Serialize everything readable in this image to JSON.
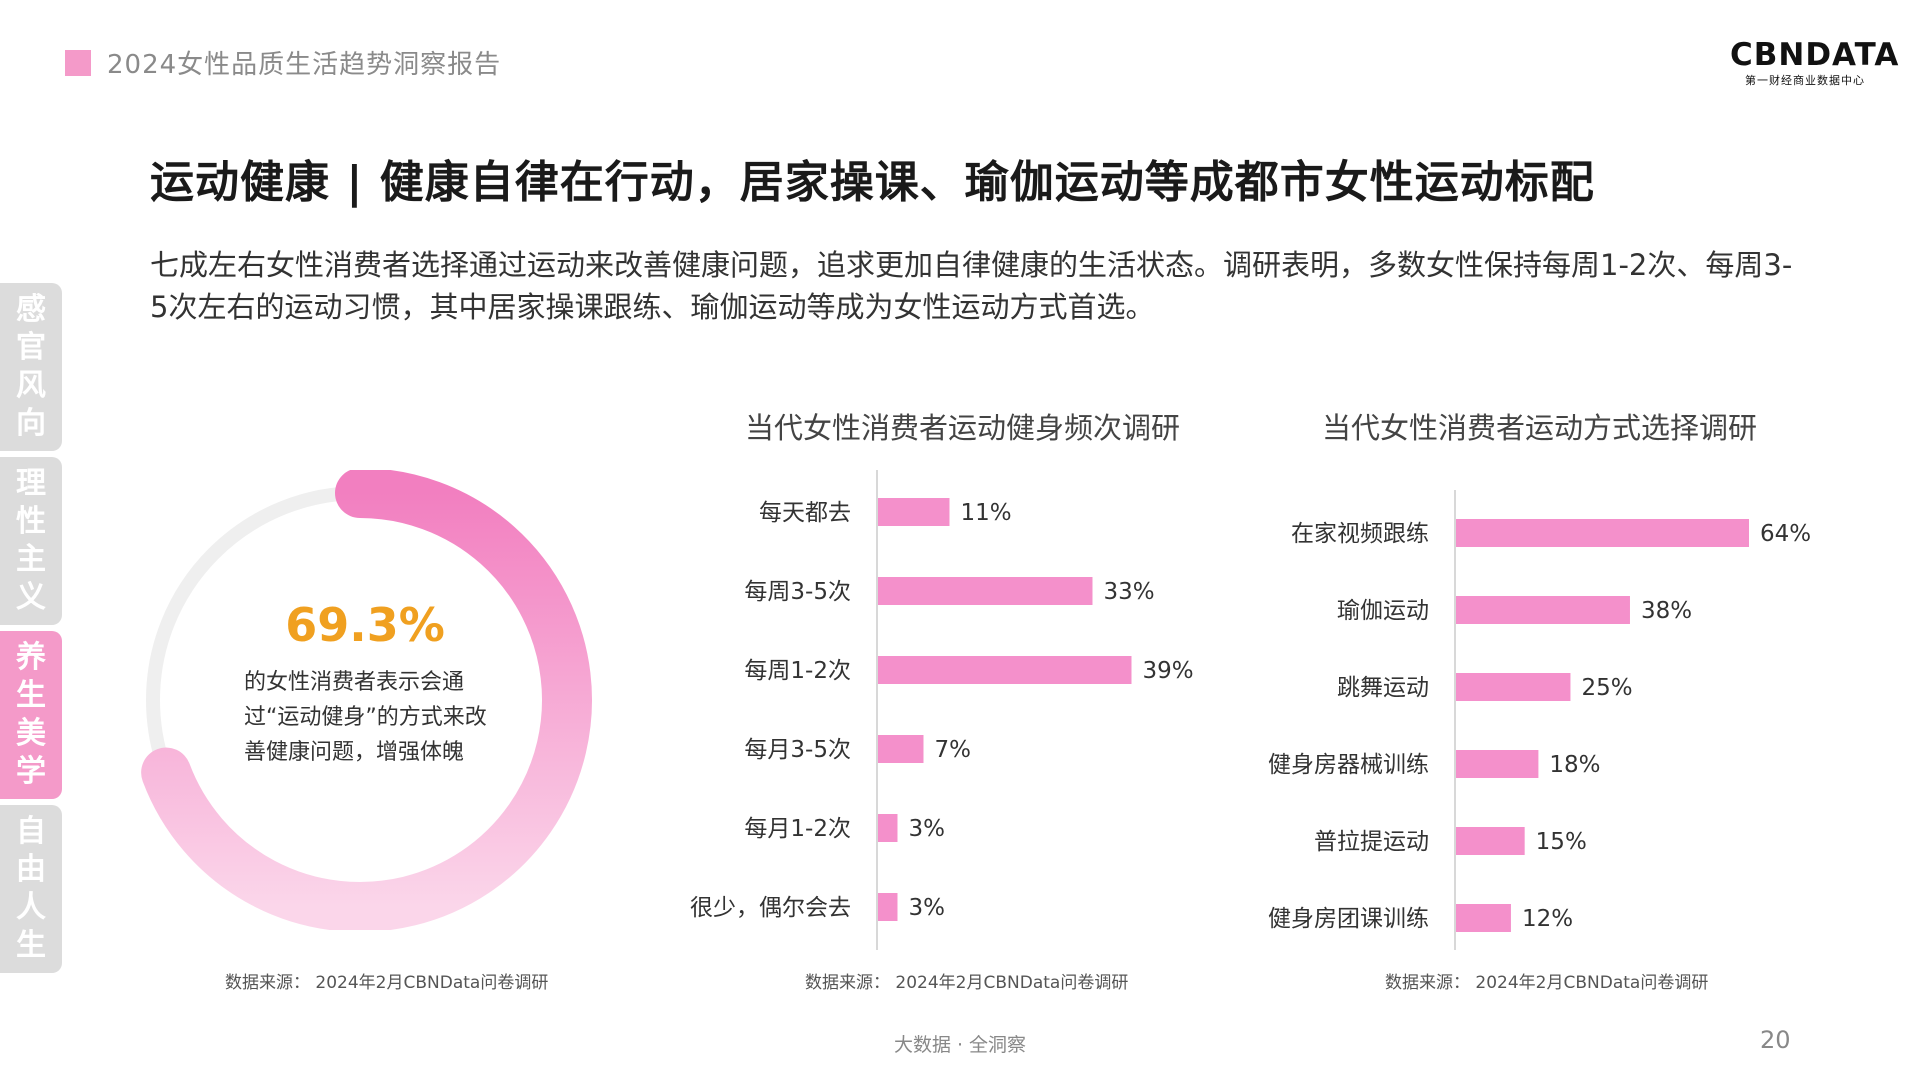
{
  "header": {
    "report_title": "2024女性品质生活趋势洞察报告"
  },
  "logo": {
    "main": "CBNDATA",
    "sub": "第一财经商业数据中心"
  },
  "page_heading": "运动健康 | 健康自律在行动，居家操课、瑜伽运动等成都市女性运动标配",
  "intro": "七成左右女性消费者选择通过运动来改善健康问题，追求更加自律健康的生活状态。调研表明，多数女性保持每周1-2次、每周3-5次左右的运动习惯，其中居家操课跟练、瑜伽运动等成为女性运动方式首选。",
  "side_nav": [
    {
      "label": "感官风向",
      "active": false
    },
    {
      "label": "理性主义",
      "active": false
    },
    {
      "label": "养生美学",
      "active": true
    },
    {
      "label": "自由人生",
      "active": false
    }
  ],
  "donut": {
    "value_label": "69.3%",
    "percent": 69.3,
    "description": "的女性消费者表示会通过“运动健身”的方式来改善健康问题，增强体魄",
    "source": "数据来源： 2024年2月CBNData问卷调研"
  },
  "chart_data": [
    {
      "type": "bar",
      "orientation": "horizontal",
      "title": "当代女性消费者运动健身频次调研",
      "categories": [
        "每天都去",
        "每周3-5次",
        "每周1-2次",
        "每月3-5次",
        "每月1-2次",
        "很少，偶尔会去"
      ],
      "values": [
        11,
        33,
        39,
        7,
        3,
        3
      ],
      "labels": [
        "11%",
        "33%",
        "39%",
        "7%",
        "3%",
        "3%"
      ],
      "unit": "%",
      "xlim": [
        0,
        60
      ],
      "color": "#f490cb",
      "source": "数据来源： 2024年2月CBNData问卷调研"
    },
    {
      "type": "bar",
      "orientation": "horizontal",
      "title": "当代女性消费者运动方式选择调研",
      "categories": [
        "在家视频跟练",
        "瑜伽运动",
        "跳舞运动",
        "健身房器械训练",
        "普拉提运动",
        "健身房团课训练"
      ],
      "values": [
        64,
        38,
        25,
        18,
        15,
        12
      ],
      "labels": [
        "64%",
        "38%",
        "25%",
        "18%",
        "15%",
        "12%"
      ],
      "unit": "%",
      "xlim": [
        0,
        64
      ],
      "color": "#f490cb",
      "source": "数据来源： 2024年2月CBNData问卷调研"
    }
  ],
  "footer": {
    "text": "大数据 · 全洞察",
    "page_number": "20"
  }
}
